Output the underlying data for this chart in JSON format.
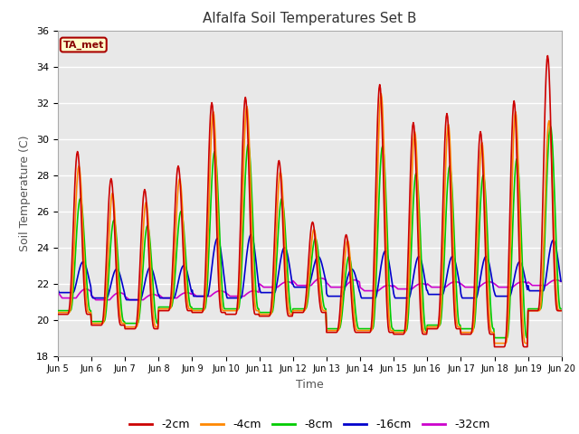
{
  "title": "Alfalfa Soil Temperatures Set B",
  "xlabel": "Time",
  "ylabel": "Soil Temperature (C)",
  "ylim": [
    18,
    36
  ],
  "yticks": [
    18,
    20,
    22,
    24,
    26,
    28,
    30,
    32,
    34,
    36
  ],
  "fig_bg_color": "#ffffff",
  "plot_bg_color": "#e8e8e8",
  "grid_color": "#ffffff",
  "series": {
    "-2cm": {
      "color": "#cc0000",
      "lw": 1.2
    },
    "-4cm": {
      "color": "#ff8800",
      "lw": 1.2
    },
    "-8cm": {
      "color": "#00cc00",
      "lw": 1.2
    },
    "-16cm": {
      "color": "#0000cc",
      "lw": 1.2
    },
    "-32cm": {
      "color": "#cc00cc",
      "lw": 1.2
    }
  },
  "annotation": {
    "text": "TA_met",
    "facecolor": "#ffffcc",
    "edgecolor": "#aa0000",
    "textcolor": "#880000",
    "fontsize": 8,
    "fontweight": "bold"
  },
  "n_days": 15,
  "pts_per_day": 48,
  "start_day": 5,
  "xtick_labels": [
    "Jun 5",
    "Jun 6",
    "Jun 7",
    "Jun 8",
    "Jun 9",
    "Jun 10",
    "Jun 11",
    "Jun 12",
    "Jun 13",
    "Jun 14",
    "Jun 15",
    "Jun 16",
    "Jun 17",
    "Jun 18",
    "Jun 19",
    "Jun 20"
  ]
}
